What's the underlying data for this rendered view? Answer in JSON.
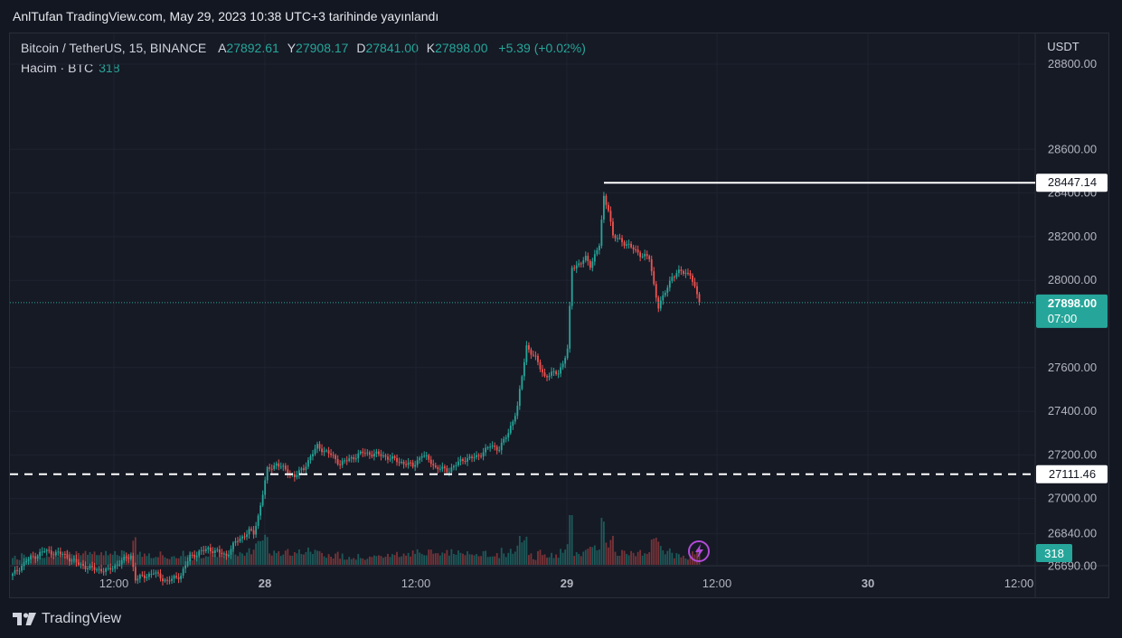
{
  "header": {
    "published": "AnlTufan TradingView.com, May 29, 2023 10:38 UTC+3 tarihinde yayınlandı"
  },
  "legend": {
    "symbol": "Bitcoin / TetherUS, 15, BINANCE",
    "open_label": "A",
    "open": "27892.61",
    "high_label": "Y",
    "high": "27908.17",
    "low_label": "D",
    "low": "27841.00",
    "close_label": "K",
    "close": "27898.00",
    "change": "+5.39 (+0.02%)"
  },
  "volume_legend": {
    "label": "Hacim · BTC",
    "value": "318"
  },
  "axis": {
    "currency": "USDT",
    "price_ticks": [
      "28800.00",
      "28600.00",
      "28400.00",
      "28200.00",
      "28000.00",
      "27600.00",
      "27400.00",
      "27200.00",
      "27000.00",
      "26840.00",
      "26690.00"
    ],
    "time_ticks": [
      "12:00",
      "28",
      "12:00",
      "29",
      "12:00",
      "30",
      "12:00"
    ]
  },
  "labels": {
    "high_line": "28447.14",
    "support_line": "27111.46",
    "last_price": "27898.00",
    "countdown": "07:00",
    "volume_badge": "318"
  },
  "colors": {
    "up": "#26a69a",
    "down": "#ef5350",
    "background": "#161a25"
  },
  "footer": {
    "brand": "TradingView"
  },
  "chart_data": {
    "type": "candlestick",
    "symbol": "Bitcoin / TetherUS",
    "interval": "15",
    "exchange": "BINANCE",
    "y_unit": "USDT",
    "ylim": [
      26560,
      28900
    ],
    "horizontal_lines": [
      {
        "value": 28447.14,
        "style": "solid"
      },
      {
        "value": 27111.46,
        "style": "dashed"
      }
    ],
    "price_keypoints": [
      [
        0,
        26650
      ],
      [
        6,
        26715
      ],
      [
        14,
        26760
      ],
      [
        22,
        26745
      ],
      [
        28,
        26705
      ],
      [
        34,
        26680
      ],
      [
        42,
        26670
      ],
      [
        46,
        26700
      ],
      [
        52,
        26740
      ],
      [
        54,
        26630
      ],
      [
        62,
        26660
      ],
      [
        68,
        26620
      ],
      [
        74,
        26650
      ],
      [
        78,
        26735
      ],
      [
        86,
        26770
      ],
      [
        94,
        26740
      ],
      [
        98,
        26800
      ],
      [
        104,
        26850
      ],
      [
        106,
        26840
      ],
      [
        108,
        26920
      ],
      [
        112,
        27130
      ],
      [
        116,
        27160
      ],
      [
        120,
        27130
      ],
      [
        124,
        27100
      ],
      [
        128,
        27140
      ],
      [
        134,
        27240
      ],
      [
        140,
        27200
      ],
      [
        144,
        27160
      ],
      [
        150,
        27190
      ],
      [
        154,
        27210
      ],
      [
        162,
        27200
      ],
      [
        170,
        27170
      ],
      [
        176,
        27150
      ],
      [
        180,
        27200
      ],
      [
        184,
        27170
      ],
      [
        186,
        27140
      ],
      [
        192,
        27130
      ],
      [
        198,
        27180
      ],
      [
        204,
        27190
      ],
      [
        210,
        27240
      ],
      [
        214,
        27230
      ],
      [
        218,
        27300
      ],
      [
        222,
        27420
      ],
      [
        226,
        27700
      ],
      [
        230,
        27640
      ],
      [
        234,
        27560
      ],
      [
        240,
        27580
      ],
      [
        242,
        27620
      ],
      [
        244,
        27680
      ],
      [
        246,
        28060
      ],
      [
        250,
        28080
      ],
      [
        252,
        28100
      ],
      [
        254,
        28070
      ],
      [
        258,
        28160
      ],
      [
        260,
        28380
      ],
      [
        262,
        28330
      ],
      [
        264,
        28200
      ],
      [
        268,
        28180
      ],
      [
        272,
        28150
      ],
      [
        276,
        28120
      ],
      [
        280,
        28100
      ],
      [
        282,
        27980
      ],
      [
        284,
        27880
      ],
      [
        286,
        27920
      ],
      [
        290,
        28020
      ],
      [
        294,
        28040
      ],
      [
        298,
        28030
      ],
      [
        300,
        27960
      ],
      [
        302,
        27898
      ]
    ],
    "total_bars": 303
  }
}
